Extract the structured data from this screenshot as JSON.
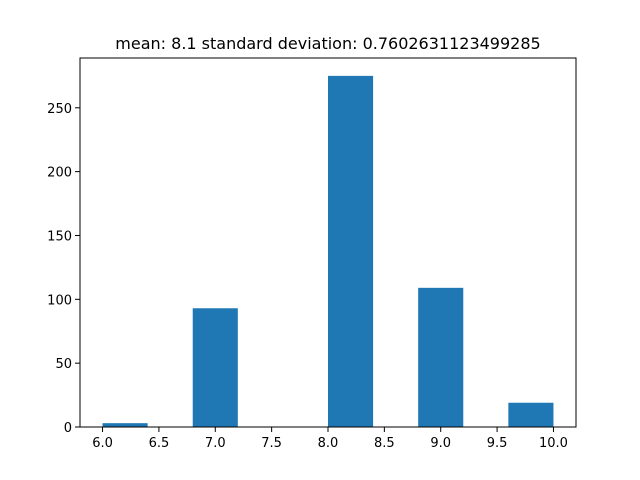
{
  "chart_data": {
    "type": "bar",
    "title": "mean: 8.1 standard deviation: 0.7602631123499285",
    "xlabel": "",
    "ylabel": "",
    "xlim": [
      5.8,
      10.2
    ],
    "ylim": [
      0,
      289
    ],
    "bar_color": "#1f77b4",
    "grid": false,
    "bins": [
      {
        "x0": 6.0,
        "x1": 6.4,
        "count": 3
      },
      {
        "x0": 6.4,
        "x1": 6.8,
        "count": 0
      },
      {
        "x0": 6.8,
        "x1": 7.2,
        "count": 93
      },
      {
        "x0": 7.2,
        "x1": 7.6,
        "count": 0
      },
      {
        "x0": 7.6,
        "x1": 8.0,
        "count": 0
      },
      {
        "x0": 8.0,
        "x1": 8.4,
        "count": 275
      },
      {
        "x0": 8.4,
        "x1": 8.8,
        "count": 0
      },
      {
        "x0": 8.8,
        "x1": 9.2,
        "count": 109
      },
      {
        "x0": 9.2,
        "x1": 9.6,
        "count": 0
      },
      {
        "x0": 9.6,
        "x1": 10.0,
        "count": 19
      }
    ],
    "x_ticks": [
      "6.0",
      "6.5",
      "7.0",
      "7.5",
      "8.0",
      "8.5",
      "9.0",
      "9.5",
      "10.0"
    ],
    "y_ticks": [
      "0",
      "50",
      "100",
      "150",
      "200",
      "250"
    ]
  }
}
